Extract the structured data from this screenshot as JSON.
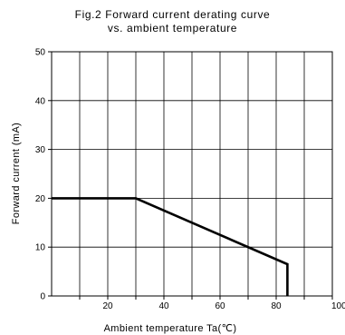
{
  "chart_data": {
    "type": "line",
    "title": "Fig.2 Forward current derating curve",
    "subtitle": "vs. ambient temperature",
    "xlabel": "Ambient temperature Ta(℃)",
    "ylabel": "Forward current (mA)",
    "xlim": [
      0,
      100
    ],
    "ylim": [
      0,
      50
    ],
    "xticks": [
      20,
      40,
      60,
      80,
      100
    ],
    "yticks": [
      0,
      10,
      20,
      30,
      40,
      50
    ],
    "x_minor_step": 10,
    "grid": true,
    "series": [
      {
        "x": [
          0,
          30,
          84,
          84
        ],
        "y": [
          20,
          20,
          6.5,
          0
        ]
      }
    ],
    "colors": {
      "line": "#000000",
      "grid": "#000000",
      "background": "#ffffff"
    }
  }
}
